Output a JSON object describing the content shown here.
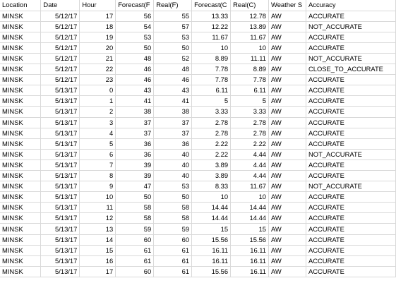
{
  "headers": [
    "Location",
    "Date",
    "Hour",
    "Forecast(F",
    "Real(F)",
    "Forecast(C",
    "Real(C)",
    "Weather S",
    "Accuracy"
  ],
  "rows": [
    [
      "MINSK",
      "5/12/17",
      "17",
      "56",
      "55",
      "13.33",
      "12.78",
      "AW",
      "ACCURATE"
    ],
    [
      "MINSK",
      "5/12/17",
      "18",
      "54",
      "57",
      "12.22",
      "13.89",
      "AW",
      "NOT_ACCURATE"
    ],
    [
      "MINSK",
      "5/12/17",
      "19",
      "53",
      "53",
      "11.67",
      "11.67",
      "AW",
      "ACCURATE"
    ],
    [
      "MINSK",
      "5/12/17",
      "20",
      "50",
      "50",
      "10",
      "10",
      "AW",
      "ACCURATE"
    ],
    [
      "MINSK",
      "5/12/17",
      "21",
      "48",
      "52",
      "8.89",
      "11.11",
      "AW",
      "NOT_ACCURATE"
    ],
    [
      "MINSK",
      "5/12/17",
      "22",
      "46",
      "48",
      "7.78",
      "8.89",
      "AW",
      "CLOSE_TO_ACCURATE"
    ],
    [
      "MINSK",
      "5/12/17",
      "23",
      "46",
      "46",
      "7.78",
      "7.78",
      "AW",
      "ACCURATE"
    ],
    [
      "MINSK",
      "5/13/17",
      "0",
      "43",
      "43",
      "6.11",
      "6.11",
      "AW",
      "ACCURATE"
    ],
    [
      "MINSK",
      "5/13/17",
      "1",
      "41",
      "41",
      "5",
      "5",
      "AW",
      "ACCURATE"
    ],
    [
      "MINSK",
      "5/13/17",
      "2",
      "38",
      "38",
      "3.33",
      "3.33",
      "AW",
      "ACCURATE"
    ],
    [
      "MINSK",
      "5/13/17",
      "3",
      "37",
      "37",
      "2.78",
      "2.78",
      "AW",
      "ACCURATE"
    ],
    [
      "MINSK",
      "5/13/17",
      "4",
      "37",
      "37",
      "2.78",
      "2.78",
      "AW",
      "ACCURATE"
    ],
    [
      "MINSK",
      "5/13/17",
      "5",
      "36",
      "36",
      "2.22",
      "2.22",
      "AW",
      "ACCURATE"
    ],
    [
      "MINSK",
      "5/13/17",
      "6",
      "36",
      "40",
      "2.22",
      "4.44",
      "AW",
      "NOT_ACCURATE"
    ],
    [
      "MINSK",
      "5/13/17",
      "7",
      "39",
      "40",
      "3.89",
      "4.44",
      "AW",
      "ACCURATE"
    ],
    [
      "MINSK",
      "5/13/17",
      "8",
      "39",
      "40",
      "3.89",
      "4.44",
      "AW",
      "ACCURATE"
    ],
    [
      "MINSK",
      "5/13/17",
      "9",
      "47",
      "53",
      "8.33",
      "11.67",
      "AW",
      "NOT_ACCURATE"
    ],
    [
      "MINSK",
      "5/13/17",
      "10",
      "50",
      "50",
      "10",
      "10",
      "AW",
      "ACCURATE"
    ],
    [
      "MINSK",
      "5/13/17",
      "11",
      "58",
      "58",
      "14.44",
      "14.44",
      "AW",
      "ACCURATE"
    ],
    [
      "MINSK",
      "5/13/17",
      "12",
      "58",
      "58",
      "14.44",
      "14.44",
      "AW",
      "ACCURATE"
    ],
    [
      "MINSK",
      "5/13/17",
      "13",
      "59",
      "59",
      "15",
      "15",
      "AW",
      "ACCURATE"
    ],
    [
      "MINSK",
      "5/13/17",
      "14",
      "60",
      "60",
      "15.56",
      "15.56",
      "AW",
      "ACCURATE"
    ],
    [
      "MINSK",
      "5/13/17",
      "15",
      "61",
      "61",
      "16.11",
      "16.11",
      "AW",
      "ACCURATE"
    ],
    [
      "MINSK",
      "5/13/17",
      "16",
      "61",
      "61",
      "16.11",
      "16.11",
      "AW",
      "ACCURATE"
    ],
    [
      "MINSK",
      "5/13/17",
      "17",
      "60",
      "61",
      "15.56",
      "16.11",
      "AW",
      "ACCURATE"
    ]
  ]
}
